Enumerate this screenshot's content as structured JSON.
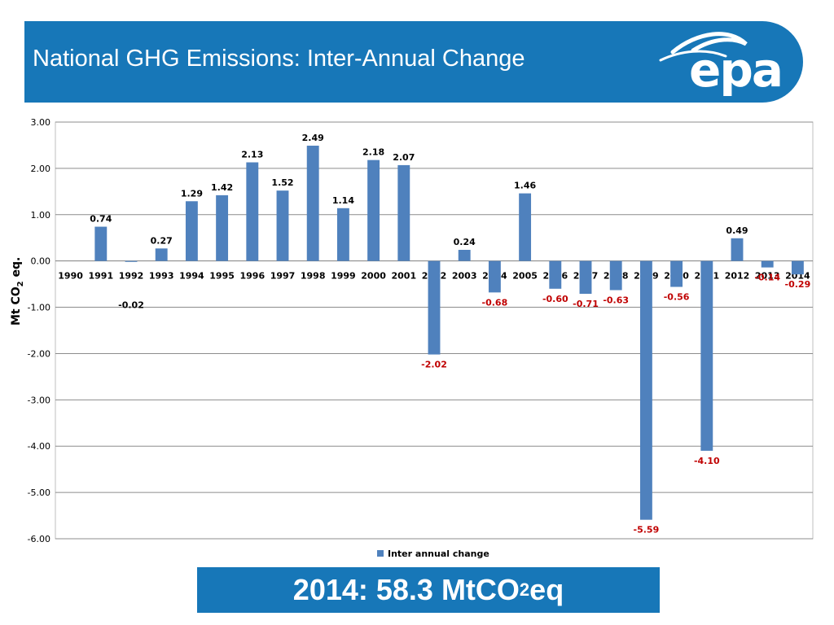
{
  "header": {
    "title": "National GHG Emissions:  Inter-Annual Change",
    "logo_text": "epa",
    "logo_icon": "epa-swirl-logo-icon"
  },
  "colors": {
    "header_bg": "#1777b8",
    "bar": "#4f81bd",
    "negative_label": "#c00000",
    "positive_label": "#000000"
  },
  "banner": {
    "prefix": "2014:  58.3 MtCO",
    "sub": "2",
    "suffix": " eq"
  },
  "chart_data": {
    "type": "bar",
    "categories": [
      "1990",
      "1991",
      "1992",
      "1993",
      "1994",
      "1995",
      "1996",
      "1997",
      "1998",
      "1999",
      "2000",
      "2001",
      "2002",
      "2003",
      "2004",
      "2005",
      "2006",
      "2007",
      "2008",
      "2009",
      "2010",
      "2011",
      "2012",
      "2013",
      "2014"
    ],
    "series": [
      {
        "name": "Inter annual change",
        "values": [
          null,
          0.74,
          -0.02,
          0.27,
          1.29,
          1.42,
          2.13,
          1.52,
          2.49,
          1.14,
          2.18,
          2.07,
          -2.02,
          0.24,
          -0.68,
          1.46,
          -0.6,
          -0.71,
          -0.63,
          -5.59,
          -0.56,
          -4.1,
          0.49,
          -0.14,
          -0.29
        ],
        "labels": [
          "",
          "0.74",
          "-0.02",
          "0.27",
          "1.29",
          "1.42",
          "2.13",
          "1.52",
          "2.49",
          "1.14",
          "2.18",
          "2.07",
          "-2.02",
          "0.24",
          "-0.68",
          "1.46",
          "-0.60",
          "-0.71",
          "-0.63",
          "-5.59",
          "-0.56",
          "-4.10",
          "0.49",
          "-0.14",
          "-0.29"
        ]
      }
    ],
    "ylabel_prefix": "Mt CO",
    "ylabel_sub": "2",
    "ylabel_suffix": " eq.",
    "ylim": [
      -6.0,
      3.0
    ],
    "yticks": [
      3.0,
      2.0,
      1.0,
      0.0,
      -1.0,
      -2.0,
      -3.0,
      -4.0,
      -5.0,
      -6.0
    ],
    "ytick_labels": [
      "3.00",
      "2.00",
      "1.00",
      "0.00",
      "-1.00",
      "-2.00",
      "-3.00",
      "-4.00",
      "-5.00",
      "-6.00"
    ],
    "grid": true,
    "legend_position": "bottom"
  }
}
